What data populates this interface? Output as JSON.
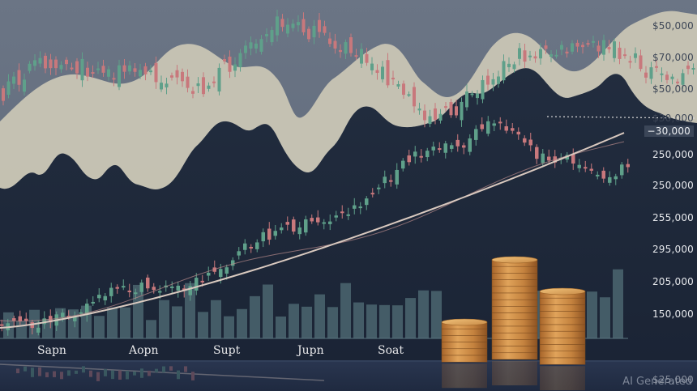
{
  "image": {
    "description_colors": {
      "sky": "#6b7585",
      "dark_bg": "#1b2638",
      "hill_cream": "#c9c5b4",
      "candle_up": "#5fa08a",
      "candle_down": "#c8787c",
      "trend_line": "#d9c9bf",
      "volume_bar": "#4b6670",
      "coin": "#c88a45"
    },
    "price_axis": [
      "$50,000",
      "$70,000",
      "$50,000",
      "$30,000",
      "−30,000",
      "250,000",
      "250,000",
      "255,000",
      "295,000",
      "205,000",
      "150,000",
      "$25,000"
    ],
    "month_labels": [
      "Sapn",
      "Aopn",
      "Supt",
      "Jupn",
      "Soat"
    ],
    "watermark": "AI Generated"
  }
}
